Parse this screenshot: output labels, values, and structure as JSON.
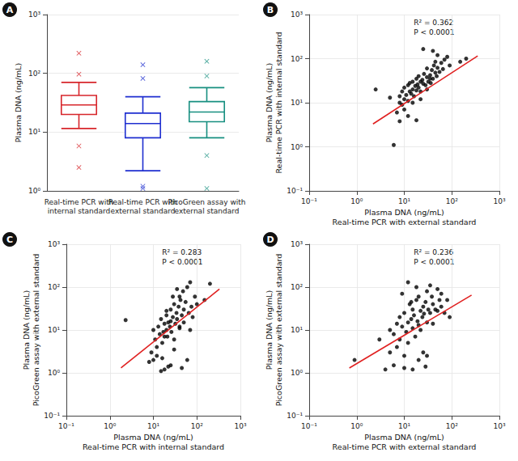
{
  "chart_data": [
    {
      "type": "boxplot",
      "title": "A",
      "y_label": "Plasma DNA (ng/mL)",
      "categories": [
        "Real-time PCR with\ninternal standard",
        "Real-time PCR with\nexternal standard",
        "PicoGreen assay with\nexternal standard"
      ],
      "values": [
        [
          11.5,
          20,
          29,
          42,
          70
        ],
        [
          2.2,
          8,
          14,
          21,
          40
        ],
        [
          8,
          15,
          22,
          33,
          57
        ]
      ],
      "outliers": [
        [
          220,
          97,
          5.8,
          2.5
        ],
        [
          140,
          82,
          1.2,
          1.1
        ],
        [
          160,
          90,
          4,
          1.1
        ]
      ],
      "colors": [
        "#d7262b",
        "#1f2fd0",
        "#178f80"
      ],
      "marker": "x",
      "log": "y",
      "ylim": [
        1,
        1000
      ],
      "yticks": [
        {
          "value": 1,
          "label": "10⁰"
        },
        {
          "value": 10,
          "label": "10¹"
        },
        {
          "value": 100,
          "label": "10²"
        },
        {
          "value": 1000,
          "label": "10³"
        }
      ],
      "grid": true
    },
    {
      "type": "scatter",
      "title": "B",
      "x_label": "Plasma DNA (ng/mL)\nReal-time PCR with external standard",
      "y_label": "Plasma DNA (ng/mL)\nReal-time PCR with internal standard",
      "annotations": [
        "R² = 0.362",
        "P < 0.0001"
      ],
      "x": [
        2.5,
        5,
        6,
        7,
        8,
        8,
        9,
        9,
        10,
        10,
        11,
        12,
        12,
        13,
        13,
        14,
        15,
        15,
        16,
        17,
        18,
        18,
        19,
        20,
        20,
        22,
        22,
        24,
        25,
        26,
        28,
        30,
        30,
        32,
        35,
        36,
        38,
        40,
        42,
        45,
        48,
        50,
        55,
        60,
        65,
        70,
        80,
        90,
        40,
        25,
        15,
        10,
        18,
        30,
        50,
        22,
        12,
        8,
        45,
        35,
        200,
        150
      ],
      "values": [
        20,
        13,
        1.1,
        6,
        10,
        14,
        9,
        18,
        12,
        22,
        15,
        11,
        25,
        18,
        28,
        16,
        20,
        30,
        14,
        24,
        35,
        19,
        26,
        22,
        40,
        30,
        18,
        33,
        27,
        45,
        25,
        38,
        60,
        30,
        42,
        28,
        55,
        35,
        70,
        48,
        40,
        62,
        50,
        80,
        58,
        95,
        110,
        70,
        150,
        165,
        10,
        7,
        4,
        20,
        120,
        12,
        5,
        3.8,
        85,
        35,
        100,
        85
      ],
      "color": "#000000",
      "marker": "circle",
      "fit": {
        "x": [
          2.2,
          350
        ],
        "values": [
          3.3,
          115
        ],
        "color": "#e02020"
      },
      "log": true,
      "xlim": [
        0.1,
        1000
      ],
      "ylim": [
        0.1,
        1000
      ],
      "xticks": [
        {
          "value": 0.1,
          "label": "10⁻¹"
        },
        {
          "value": 1,
          "label": "10⁰"
        },
        {
          "value": 10,
          "label": "10¹"
        },
        {
          "value": 100,
          "label": "10²"
        },
        {
          "value": 1000,
          "label": "10³"
        }
      ],
      "yticks": [
        {
          "value": 0.1,
          "label": "10⁻¹"
        },
        {
          "value": 1,
          "label": "10⁰"
        },
        {
          "value": 10,
          "label": "10¹"
        },
        {
          "value": 100,
          "label": "10²"
        },
        {
          "value": 1000,
          "label": "10³"
        }
      ],
      "grid": true
    },
    {
      "type": "scatter",
      "title": "C",
      "x_label": "Plasma DNA (ng/mL)\nReal-time PCR with internal standard",
      "y_label": "Plasma DNA (ng/mL)\nPicoGreen assay with external standard",
      "annotations": [
        "R² = 0.283",
        "P < 0.0001"
      ],
      "x": [
        2.3,
        8,
        9,
        10,
        10,
        11,
        12,
        13,
        14,
        15,
        15,
        16,
        17,
        18,
        18,
        20,
        20,
        21,
        22,
        24,
        25,
        25,
        26,
        28,
        30,
        30,
        32,
        34,
        35,
        38,
        40,
        40,
        42,
        45,
        48,
        50,
        55,
        60,
        65,
        70,
        75,
        80,
        90,
        100,
        200,
        150,
        12,
        16,
        22,
        30,
        45,
        60,
        28,
        35,
        20,
        25,
        40,
        18,
        50,
        70
      ],
      "values": [
        17,
        1.8,
        3,
        10,
        2,
        6,
        4,
        12,
        8,
        1.1,
        18,
        5,
        9,
        14,
        1.2,
        10,
        22,
        7,
        15,
        12,
        1.5,
        30,
        9,
        20,
        6,
        40,
        14,
        25,
        18,
        35,
        12,
        60,
        50,
        22,
        80,
        30,
        45,
        100,
        25,
        130,
        35,
        20,
        60,
        40,
        120,
        50,
        2.5,
        2.2,
        1.4,
        3.5,
        1.3,
        2,
        60,
        90,
        28,
        16,
        11,
        7,
        15,
        10
      ],
      "color": "#000000",
      "marker": "circle",
      "fit": {
        "x": [
          1.8,
          330
        ],
        "values": [
          1.3,
          90
        ],
        "color": "#e02020"
      },
      "log": true,
      "xlim": [
        0.1,
        1000
      ],
      "ylim": [
        0.1,
        1000
      ],
      "xticks": [
        {
          "value": 0.1,
          "label": "10⁻¹"
        },
        {
          "value": 1,
          "label": "10⁰"
        },
        {
          "value": 10,
          "label": "10¹"
        },
        {
          "value": 100,
          "label": "10²"
        },
        {
          "value": 1000,
          "label": "10³"
        }
      ],
      "yticks": [
        {
          "value": 0.1,
          "label": "10⁻¹"
        },
        {
          "value": 1,
          "label": "10⁰"
        },
        {
          "value": 10,
          "label": "10¹"
        },
        {
          "value": 100,
          "label": "10²"
        },
        {
          "value": 1000,
          "label": "10³"
        }
      ],
      "grid": true
    },
    {
      "type": "scatter",
      "title": "D",
      "x_label": "Plasma DNA (ng/mL)\nReal-time PCR with external standard",
      "y_label": "Plasma DNA (ng/mL)\nPicoGreen assay with external standard",
      "annotations": [
        "R² = 0.236",
        "P < 0.0001"
      ],
      "x": [
        0.9,
        3,
        4,
        5,
        5,
        6,
        7,
        7,
        8,
        8,
        9,
        10,
        10,
        11,
        12,
        12,
        13,
        14,
        15,
        15,
        16,
        17,
        18,
        19,
        20,
        20,
        22,
        24,
        25,
        26,
        28,
        30,
        30,
        32,
        35,
        38,
        40,
        45,
        50,
        55,
        60,
        70,
        80,
        90,
        10,
        15,
        20,
        25,
        30,
        12,
        18,
        9,
        6,
        14,
        22,
        40,
        50,
        35,
        60,
        28
      ],
      "values": [
        2,
        6,
        1.2,
        3,
        10,
        8,
        14,
        4,
        20,
        6,
        12,
        2.5,
        25,
        9,
        15,
        5,
        40,
        18,
        11,
        30,
        22,
        7,
        50,
        16,
        13,
        60,
        28,
        20,
        35,
        24,
        45,
        15,
        80,
        30,
        25,
        60,
        40,
        30,
        90,
        50,
        35,
        25,
        50,
        20,
        1.3,
        1.2,
        2,
        3,
        2.5,
        130,
        100,
        70,
        1.5,
        45,
        10,
        14,
        28,
        110,
        70,
        1.4
      ],
      "color": "#000000",
      "marker": "circle",
      "fit": {
        "x": [
          0.7,
          260
        ],
        "values": [
          1.3,
          65
        ],
        "color": "#e02020"
      },
      "log": true,
      "xlim": [
        0.1,
        1000
      ],
      "ylim": [
        0.1,
        1000
      ],
      "xticks": [
        {
          "value": 0.1,
          "label": "10⁻¹"
        },
        {
          "value": 1,
          "label": "10⁰"
        },
        {
          "value": 10,
          "label": "10¹"
        },
        {
          "value": 100,
          "label": "10²"
        },
        {
          "value": 1000,
          "label": "10³"
        }
      ],
      "yticks": [
        {
          "value": 0.1,
          "label": "10⁻¹"
        },
        {
          "value": 1,
          "label": "10⁰"
        },
        {
          "value": 10,
          "label": "10¹"
        },
        {
          "value": 100,
          "label": "10²"
        },
        {
          "value": 1000,
          "label": "10³"
        }
      ],
      "grid": true
    }
  ]
}
